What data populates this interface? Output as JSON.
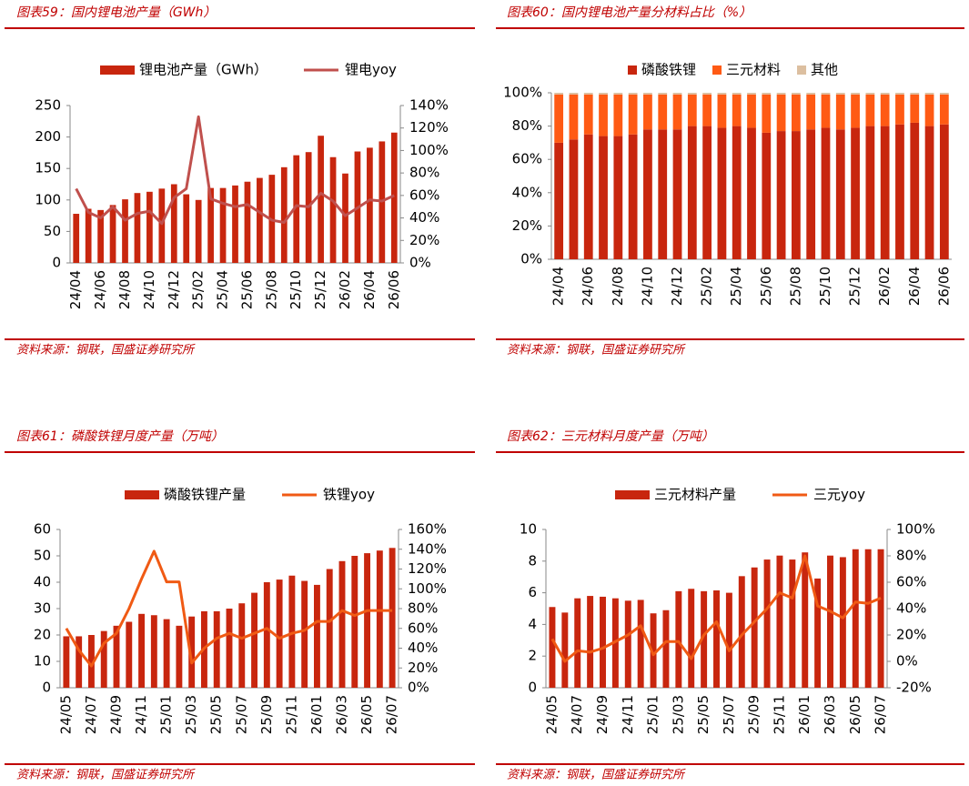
{
  "chart_data": [
    {
      "type": "bar_line",
      "title": "图表59：国内锂电池产量（GWh）",
      "source": "资料来源：钢联，国盛证券研究所",
      "categories": [
        "24/04",
        null,
        "24/06",
        null,
        "24/08",
        null,
        "24/10",
        null,
        "24/12",
        null,
        "25/02",
        null,
        "25/04",
        null,
        "25/06",
        null,
        "25/08",
        null,
        "25/10",
        null,
        "25/12",
        null,
        "26/02",
        null,
        "26/04",
        null,
        "26/06"
      ],
      "series": [
        {
          "name": "锂电池产量（GWh）",
          "type": "bar",
          "color": "#c8260e",
          "values": [
            78,
            86,
            84,
            92,
            101,
            111,
            113,
            118,
            125,
            109,
            100,
            119,
            119,
            123,
            129,
            135,
            140,
            152,
            171,
            176,
            202,
            168,
            142,
            177,
            183,
            193,
            207
          ]
        },
        {
          "name": "锂电yoy",
          "type": "line",
          "axis": "y2",
          "color": "#c0504d",
          "values": [
            66,
            45,
            40,
            50,
            38,
            44,
            46,
            35,
            58,
            66,
            130,
            57,
            53,
            50,
            52,
            45,
            38,
            36,
            51,
            50,
            62,
            55,
            42,
            49,
            56,
            55,
            60
          ]
        }
      ],
      "ylim": [
        0,
        250
      ],
      "yticks": [
        0,
        50,
        100,
        150,
        200,
        250
      ],
      "y2lim": [
        0,
        140
      ],
      "y2ticks": [
        {
          "value": 0,
          "label": "0%"
        },
        {
          "value": 20,
          "label": "20%"
        },
        {
          "value": 40,
          "label": "40%"
        },
        {
          "value": 60,
          "label": "60%"
        },
        {
          "value": 80,
          "label": "80%"
        },
        {
          "value": 100,
          "label": "100%"
        },
        {
          "value": 120,
          "label": "120%"
        },
        {
          "value": 140,
          "label": "140%"
        }
      ]
    },
    {
      "type": "stacked_bar",
      "title": "图表60：国内锂电池产量分材料占比（%）",
      "source": "资料来源：钢联，国盛证券研究所",
      "categories": [
        "24/04",
        null,
        "24/06",
        null,
        "24/08",
        null,
        "24/10",
        null,
        "24/12",
        null,
        "25/02",
        null,
        "25/04",
        null,
        "25/06",
        null,
        "25/08",
        null,
        "25/10",
        null,
        "25/12",
        null,
        "26/02",
        null,
        "26/04",
        null,
        "26/06"
      ],
      "series": [
        {
          "name": "磷酸铁锂",
          "color": "#c8260e",
          "values": [
            70,
            72,
            75,
            74,
            74,
            75,
            78,
            78,
            78,
            80,
            80,
            79,
            80,
            79,
            76,
            77,
            77,
            78,
            79,
            78,
            79,
            80,
            80,
            81,
            82,
            80,
            81
          ]
        },
        {
          "name": "三元材料",
          "color": "#ff5a14",
          "values": [
            29,
            27,
            24,
            25,
            25,
            24,
            21,
            21,
            21,
            19,
            19,
            20,
            19,
            20,
            23,
            22,
            22,
            21,
            20,
            21,
            20,
            19,
            19,
            18,
            17,
            19,
            18
          ]
        },
        {
          "name": "其他",
          "color": "#dcbfa0",
          "values": [
            1,
            1,
            1,
            1,
            1,
            1,
            1,
            1,
            1,
            1,
            1,
            1,
            1,
            1,
            1,
            1,
            1,
            1,
            1,
            1,
            1,
            1,
            1,
            1,
            1,
            1,
            1
          ]
        }
      ],
      "ylim": [
        0,
        100
      ],
      "yticks": [
        {
          "value": 0,
          "label": "0%"
        },
        {
          "value": 20,
          "label": "20%"
        },
        {
          "value": 40,
          "label": "40%"
        },
        {
          "value": 60,
          "label": "60%"
        },
        {
          "value": 80,
          "label": "80%"
        },
        {
          "value": 100,
          "label": "100%"
        }
      ]
    },
    {
      "type": "bar_line",
      "title": "图表61：磷酸铁锂月度产量（万吨）",
      "source": "资料来源：钢联，国盛证券研究所",
      "categories": [
        "24/05",
        null,
        "24/07",
        null,
        "24/09",
        null,
        "24/11",
        null,
        "25/01",
        null,
        "25/03",
        null,
        "25/05",
        null,
        "25/07",
        null,
        "25/09",
        null,
        "25/11",
        null,
        "26/01",
        null,
        "26/03",
        null,
        "26/05",
        null,
        "26/07"
      ],
      "series": [
        {
          "name": "磷酸铁锂产量",
          "type": "bar",
          "color": "#c8260e",
          "values": [
            19.5,
            19.5,
            20,
            21.5,
            23.5,
            25,
            28,
            27.5,
            26,
            23.5,
            27,
            29,
            29,
            30,
            32,
            36,
            40,
            41,
            42.5,
            40.5,
            39,
            45,
            48,
            50,
            51,
            52,
            53
          ]
        },
        {
          "name": "铁锂yoy",
          "type": "line",
          "axis": "y2",
          "color": "#f05a14",
          "values": [
            60,
            38,
            22,
            45,
            55,
            80,
            110,
            138,
            107,
            107,
            25,
            40,
            50,
            55,
            50,
            55,
            60,
            50,
            55,
            58,
            67,
            67,
            78,
            73,
            78,
            78,
            78
          ]
        }
      ],
      "ylim": [
        0,
        60
      ],
      "yticks": [
        0,
        10,
        20,
        30,
        40,
        50,
        60
      ],
      "y2lim": [
        0,
        160
      ],
      "y2ticks": [
        {
          "value": 0,
          "label": "0%"
        },
        {
          "value": 20,
          "label": "20%"
        },
        {
          "value": 40,
          "label": "40%"
        },
        {
          "value": 60,
          "label": "60%"
        },
        {
          "value": 80,
          "label": "80%"
        },
        {
          "value": 100,
          "label": "100%"
        },
        {
          "value": 120,
          "label": "120%"
        },
        {
          "value": 140,
          "label": "140%"
        },
        {
          "value": 160,
          "label": "160%"
        }
      ]
    },
    {
      "type": "bar_line",
      "title": "图表62：三元材料月度产量（万吨）",
      "source": "资料来源：钢联，国盛证券研究所",
      "categories": [
        "24/05",
        null,
        "24/07",
        null,
        "24/09",
        null,
        "24/11",
        null,
        "25/01",
        null,
        "25/03",
        null,
        "25/05",
        null,
        "25/07",
        null,
        "25/09",
        null,
        "25/11",
        null,
        "26/01",
        null,
        "26/03",
        null,
        "26/05",
        null,
        "26/07"
      ],
      "series": [
        {
          "name": "三元材料产量",
          "type": "bar",
          "color": "#c8260e",
          "values": [
            5.1,
            4.75,
            5.65,
            5.8,
            5.75,
            5.65,
            5.5,
            5.55,
            4.7,
            4.9,
            6.1,
            6.25,
            6.1,
            6.15,
            6.0,
            7.05,
            7.6,
            8.1,
            8.35,
            8.1,
            8.55,
            6.9,
            8.35,
            8.25,
            8.75,
            8.75,
            8.75
          ]
        },
        {
          "name": "三元yoy",
          "type": "line",
          "axis": "y2",
          "color": "#f05a14",
          "values": [
            17,
            0,
            8,
            7,
            10,
            15,
            20,
            27,
            5,
            15,
            15,
            2,
            20,
            30,
            8,
            20,
            30,
            40,
            52,
            48,
            80,
            42,
            38,
            33,
            45,
            44,
            48
          ]
        }
      ],
      "ylim": [
        0,
        10
      ],
      "yticks": [
        0,
        2,
        4,
        6,
        8,
        10
      ],
      "y2lim": [
        -20,
        100
      ],
      "y2ticks": [
        {
          "value": -20,
          "label": "-20%"
        },
        {
          "value": 0,
          "label": "0%"
        },
        {
          "value": 20,
          "label": "20%"
        },
        {
          "value": 40,
          "label": "40%"
        },
        {
          "value": 60,
          "label": "60%"
        },
        {
          "value": 80,
          "label": "80%"
        },
        {
          "value": 100,
          "label": "100%"
        }
      ]
    }
  ]
}
